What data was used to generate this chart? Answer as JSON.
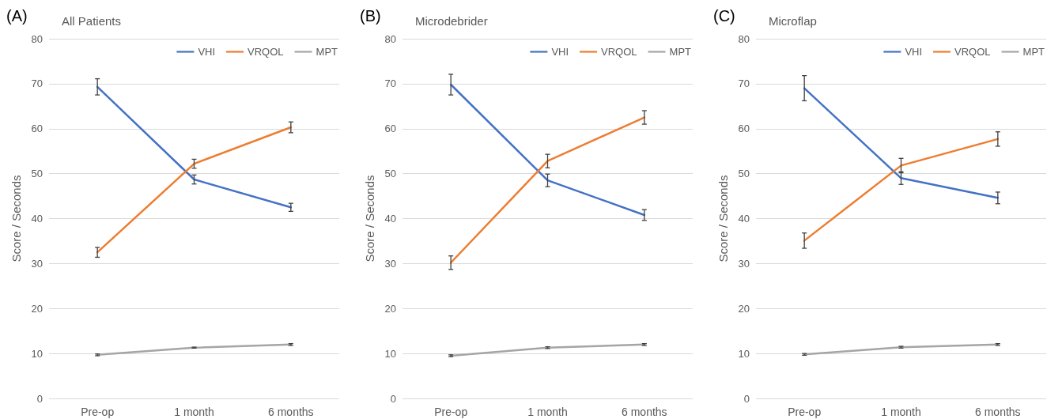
{
  "chart_data": [
    {
      "type": "line",
      "title": "All Patients",
      "ylabel": "Score / Seconds",
      "annotations": [
        "(A)"
      ],
      "categories": [
        "Pre-op",
        "1 month",
        "6 months"
      ],
      "ylim": [
        0,
        80
      ],
      "yticks": [
        0,
        10,
        20,
        30,
        40,
        50,
        60,
        70,
        80
      ],
      "grid": "y",
      "legend": "top right",
      "marker": "none",
      "line_style": "solid",
      "series": [
        {
          "name": "VHI",
          "color": "#4472c4",
          "values": [
            69.3,
            48.7,
            42.5
          ],
          "errors": [
            1.8,
            1.0,
            0.9
          ]
        },
        {
          "name": "VRQOL",
          "color": "#ed7d31",
          "values": [
            32.5,
            52.2,
            60.3
          ],
          "errors": [
            1.1,
            1.0,
            1.2
          ]
        },
        {
          "name": "MPT",
          "color": "#a5a5a5",
          "values": [
            9.7,
            11.3,
            12.0
          ],
          "errors": [
            0.2,
            0.1,
            0.2
          ]
        }
      ]
    },
    {
      "type": "line",
      "title": "Microdebrider",
      "ylabel": "Score / Seconds",
      "annotations": [
        "(B)"
      ],
      "categories": [
        "Pre-op",
        "1 month",
        "6 months"
      ],
      "ylim": [
        0,
        80
      ],
      "yticks": [
        0,
        10,
        20,
        30,
        40,
        50,
        60,
        70,
        80
      ],
      "grid": "y",
      "legend": "top right",
      "marker": "none",
      "line_style": "solid",
      "series": [
        {
          "name": "VHI",
          "color": "#4472c4",
          "values": [
            69.8,
            48.5,
            40.8
          ],
          "errors": [
            2.3,
            1.4,
            1.2
          ]
        },
        {
          "name": "VRQOL",
          "color": "#ed7d31",
          "values": [
            30.2,
            52.8,
            62.5
          ],
          "errors": [
            1.5,
            1.5,
            1.5
          ]
        },
        {
          "name": "MPT",
          "color": "#a5a5a5",
          "values": [
            9.5,
            11.3,
            12.0
          ],
          "errors": [
            0.2,
            0.2,
            0.2
          ]
        }
      ]
    },
    {
      "type": "line",
      "title": "Microflap",
      "ylabel": "Score / Seconds",
      "annotations": [
        "(C)"
      ],
      "categories": [
        "Pre-op",
        "1 month",
        "6 months"
      ],
      "ylim": [
        0,
        80
      ],
      "yticks": [
        0,
        10,
        20,
        30,
        40,
        50,
        60,
        70,
        80
      ],
      "grid": "y",
      "legend": "top right",
      "marker": "none",
      "line_style": "solid",
      "series": [
        {
          "name": "VHI",
          "color": "#4472c4",
          "values": [
            69.0,
            49.0,
            44.6
          ],
          "errors": [
            2.8,
            1.4,
            1.3
          ]
        },
        {
          "name": "VRQOL",
          "color": "#ed7d31",
          "values": [
            35.1,
            51.8,
            57.7
          ],
          "errors": [
            1.7,
            1.6,
            1.6
          ]
        },
        {
          "name": "MPT",
          "color": "#a5a5a5",
          "values": [
            9.8,
            11.4,
            12.0
          ],
          "errors": [
            0.2,
            0.2,
            0.2
          ]
        }
      ]
    }
  ]
}
